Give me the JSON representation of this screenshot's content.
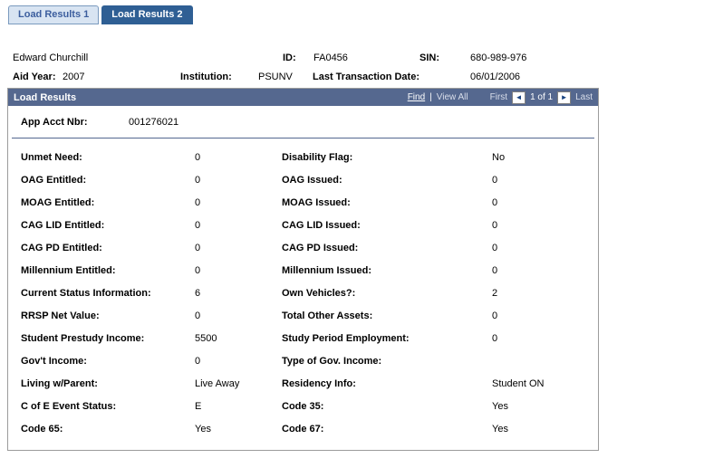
{
  "tabs": [
    {
      "label": "Load Results 1"
    },
    {
      "label": "Load Results 2"
    }
  ],
  "header": {
    "person_name": "Edward Churchill",
    "id_label": "ID:",
    "id_value": "FA0456",
    "sin_label": "SIN:",
    "sin_value": "680-989-976",
    "aid_year_label": "Aid Year:",
    "aid_year_value": "2007",
    "institution_label": "Institution:",
    "institution_value": "PSUNV",
    "last_transaction_label": "Last Transaction Date:",
    "last_transaction_value": "06/01/2006"
  },
  "group": {
    "title": "Load Results",
    "nav": {
      "find": "Find",
      "separator": "|",
      "view_all": "View All",
      "first": "First",
      "prev_icon": "◄",
      "page": "1 of 1",
      "next_icon": "►",
      "last": "Last"
    },
    "app_acct_label": "App Acct Nbr:",
    "app_acct_value": "001276021",
    "rows": [
      {
        "left_label": "Unmet Need:",
        "left_value": "0",
        "right_label": "Disability Flag:",
        "right_value": "No"
      },
      {
        "left_label": "OAG Entitled:",
        "left_value": "0",
        "right_label": "OAG Issued:",
        "right_value": "0"
      },
      {
        "left_label": "MOAG Entitled:",
        "left_value": "0",
        "right_label": "MOAG Issued:",
        "right_value": "0"
      },
      {
        "left_label": "CAG LID Entitled:",
        "left_value": "0",
        "right_label": "CAG LID Issued:",
        "right_value": "0"
      },
      {
        "left_label": "CAG PD Entitled:",
        "left_value": "0",
        "right_label": "CAG PD Issued:",
        "right_value": "0"
      },
      {
        "left_label": "Millennium Entitled:",
        "left_value": "0",
        "right_label": "Millennium Issued:",
        "right_value": "0"
      },
      {
        "left_label": "Current Status Information:",
        "left_value": "6",
        "right_label": "Own Vehicles?:",
        "right_value": "2"
      },
      {
        "left_label": "RRSP Net Value:",
        "left_value": "0",
        "right_label": "Total Other Assets:",
        "right_value": "0"
      },
      {
        "left_label": "Student Prestudy Income:",
        "left_value": "5500",
        "right_label": "Study Period Employment:",
        "right_value": "0"
      },
      {
        "left_label": "Gov't Income:",
        "left_value": "0",
        "right_label": "Type of Gov. Income:",
        "right_value": ""
      },
      {
        "left_label": "Living w/Parent:",
        "left_value": "Live Away",
        "right_label": "Residency Info:",
        "right_value": "Student ON"
      },
      {
        "left_label": "C of E Event Status:",
        "left_value": "E",
        "right_label": "Code 35:",
        "right_value": "Yes"
      },
      {
        "left_label": "Code 65:",
        "left_value": "Yes",
        "right_label": "Code 67:",
        "right_value": "Yes"
      }
    ]
  },
  "colors": {
    "tab_active_bg": "#2F5F94",
    "tab_inactive_bg": "#D8E4F2",
    "tab_inactive_fg": "#3C5E9E",
    "bar_bg": "#55688F",
    "box_border": "#9C9C9C",
    "separator": "#53678F",
    "disabled_link": "#D9DEEA",
    "arrow": "#16417F"
  }
}
